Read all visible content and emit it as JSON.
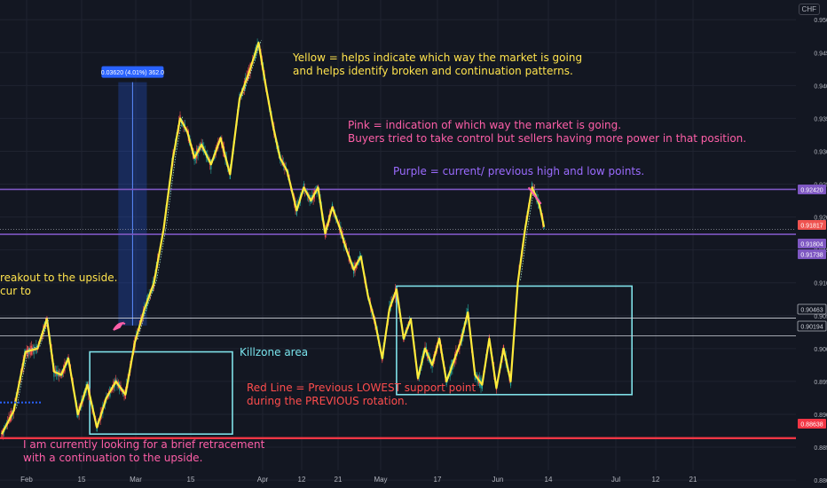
{
  "header": {
    "currency": "CHF"
  },
  "colors": {
    "background": "#131722",
    "grid": "#1f2330",
    "bull": "#26a69a",
    "bear": "#ef5350",
    "yellow": "#ffeb3b",
    "pink": "#ff5fa8",
    "purple": "#7e57c2",
    "red": "#f23645",
    "cyan": "#7fe0e8",
    "blue": "#2962ff"
  },
  "annotations": {
    "yellow": [
      "Yellow = helps indicate which way the market is going",
      "and helps identify broken and continuation patterns."
    ],
    "pink": [
      "Pink = indication of which way the market is going.",
      "Buyers tried to take control but sellers having more power in that position."
    ],
    "purple": "Purple = current/ previous high and low points.",
    "breakout": [
      "reakout to the upside.",
      "cur to"
    ],
    "killzone": "Killzone area",
    "red": [
      "Red Line = Previous LOWEST support point",
      "during the PREVIOUS rotation."
    ],
    "bottom": [
      "I am currently looking for a brief retracement",
      "with a continuation to the upside."
    ],
    "measure": "0.03620 (4.01%) 362.0"
  },
  "chart_data": {
    "type": "candlestick",
    "instrument_quote": "CHF",
    "xlabel": "",
    "ylabel": "",
    "x_ticks": [
      "Feb",
      "15",
      "Mar",
      "15",
      "Apr",
      "12",
      "21",
      "May",
      "17",
      "Jun",
      "14",
      "Jul",
      "12",
      "21"
    ],
    "y_ticks": [
      0.95,
      0.945,
      0.94,
      0.935,
      0.93,
      0.925,
      0.92,
      0.915,
      0.91,
      0.905,
      0.9,
      0.895,
      0.89,
      0.885,
      0.88
    ],
    "ylim": [
      0.8788,
      0.953
    ],
    "price_labels": [
      {
        "value": "0.92420",
        "color": "#7e57c2"
      },
      {
        "value": "0.91817",
        "color": "#ef5350"
      },
      {
        "value": "0.91804",
        "color": "#7e57c2"
      },
      {
        "value": "0.91738",
        "color": "#7e57c2"
      },
      {
        "value": "0.90463",
        "color": "#b2b5be"
      },
      {
        "value": "0.90194",
        "color": "#b2b5be"
      },
      {
        "value": "0.88638",
        "color": "#f23645"
      }
    ],
    "horizontal_levels": {
      "purple_high": 0.9242,
      "purple_low": 0.91738,
      "white_1": 0.90463,
      "white_2": 0.90194,
      "red_support": 0.88638
    },
    "yellow_swing_line": [
      [
        0,
        0.887
      ],
      [
        5,
        0.8905
      ],
      [
        10,
        0.8995
      ],
      [
        15,
        0.9
      ],
      [
        19,
        0.9045
      ],
      [
        22,
        0.8965
      ],
      [
        25,
        0.896
      ],
      [
        28,
        0.8985
      ],
      [
        32,
        0.89
      ],
      [
        36,
        0.8945
      ],
      [
        40,
        0.888
      ],
      [
        44,
        0.8925
      ],
      [
        48,
        0.895
      ],
      [
        52,
        0.893
      ],
      [
        56,
        0.901
      ],
      [
        60,
        0.906
      ],
      [
        64,
        0.91
      ],
      [
        68,
        0.918
      ],
      [
        72,
        0.929
      ],
      [
        75,
        0.935
      ],
      [
        78,
        0.933
      ],
      [
        81,
        0.929
      ],
      [
        84,
        0.931
      ],
      [
        88,
        0.928
      ],
      [
        92,
        0.932
      ],
      [
        96,
        0.9265
      ],
      [
        100,
        0.938
      ],
      [
        104,
        0.942
      ],
      [
        108,
        0.9465
      ],
      [
        111,
        0.94
      ],
      [
        114,
        0.934
      ],
      [
        117,
        0.929
      ],
      [
        120,
        0.927
      ],
      [
        124,
        0.921
      ],
      [
        127,
        0.9245
      ],
      [
        130,
        0.9225
      ],
      [
        133,
        0.9245
      ],
      [
        136,
        0.9175
      ],
      [
        139,
        0.9215
      ],
      [
        142,
        0.9185
      ],
      [
        145,
        0.915
      ],
      [
        148,
        0.912
      ],
      [
        151,
        0.914
      ],
      [
        154,
        0.908
      ],
      [
        157,
        0.904
      ],
      [
        160,
        0.8985
      ],
      [
        163,
        0.906
      ],
      [
        166,
        0.909
      ],
      [
        169,
        0.9015
      ],
      [
        172,
        0.9045
      ],
      [
        175,
        0.8955
      ],
      [
        178,
        0.9
      ],
      [
        181,
        0.8975
      ],
      [
        184,
        0.9015
      ],
      [
        187,
        0.895
      ],
      [
        190,
        0.898
      ],
      [
        193,
        0.901
      ],
      [
        196,
        0.9055
      ],
      [
        199,
        0.896
      ],
      [
        202,
        0.8945
      ],
      [
        205,
        0.9015
      ],
      [
        208,
        0.894
      ],
      [
        211,
        0.9
      ],
      [
        214,
        0.895
      ],
      [
        217,
        0.91
      ],
      [
        220,
        0.918
      ],
      [
        223,
        0.9245
      ],
      [
        226,
        0.922
      ],
      [
        228,
        0.9185
      ]
    ],
    "rectangles": [
      {
        "name": "breakout-measure",
        "x": [
          49,
          61
        ],
        "y": [
          0.9035,
          0.9405
        ],
        "label": "0.03620 (4.01%) 362.0"
      },
      {
        "name": "killzone-area",
        "x": [
          37,
          97
        ],
        "y": [
          0.887,
          0.8995
        ],
        "label": "Killzone area"
      },
      {
        "name": "may-june-range",
        "x": [
          166,
          265
        ],
        "y": [
          0.893,
          0.9095
        ]
      }
    ]
  }
}
